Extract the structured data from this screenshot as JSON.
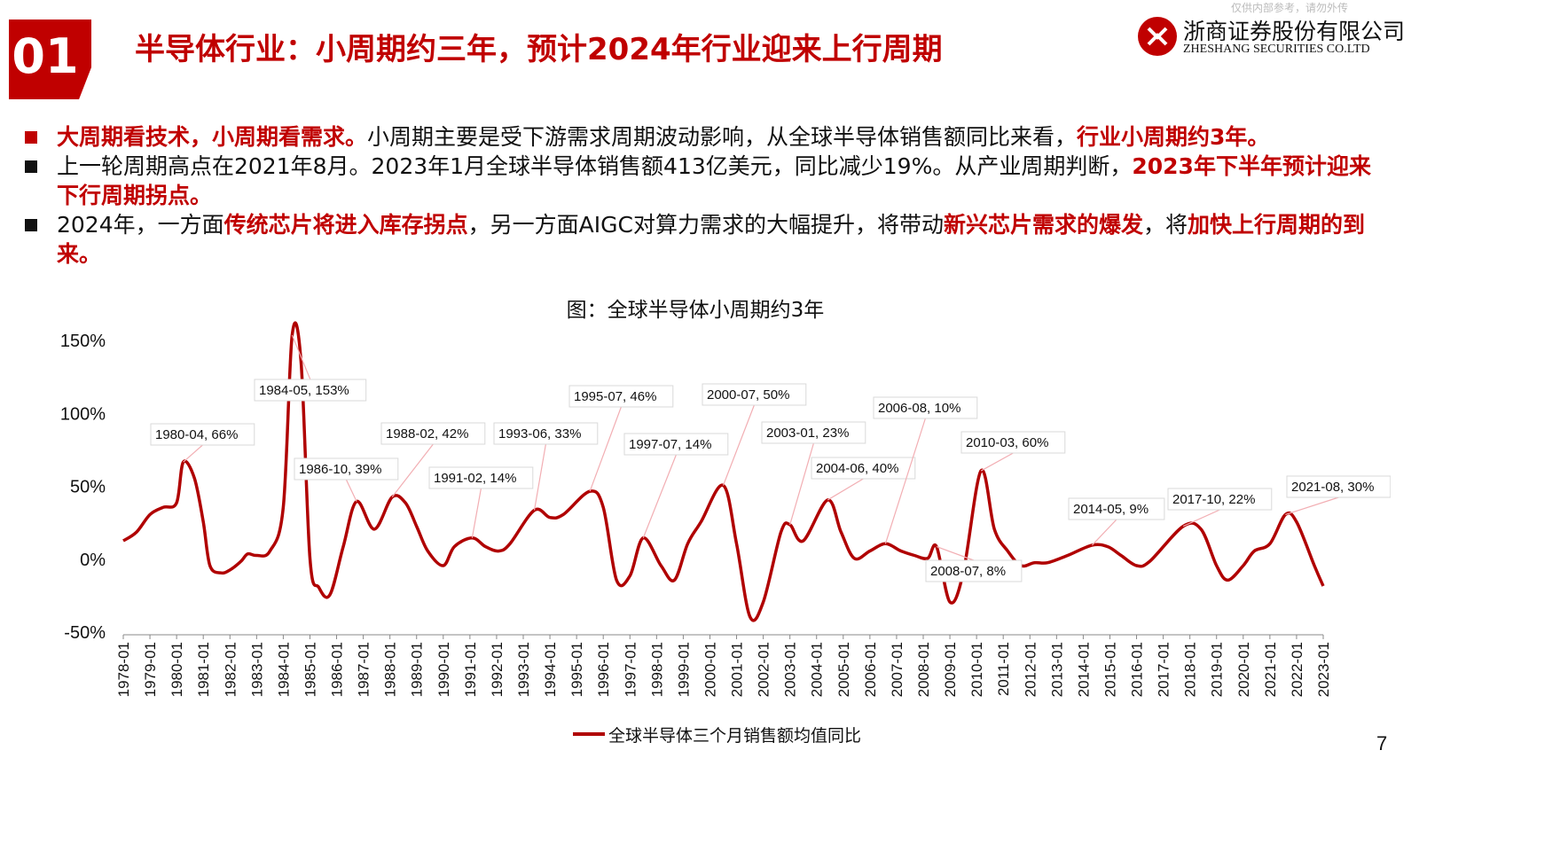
{
  "header": {
    "section_number": "01",
    "title": "半导体行业：小周期约三年，预计2024年行业迎来上行周期",
    "top_note": "仅供内部参考，请勿外传"
  },
  "logo": {
    "name_cn": "浙商证券股份有限公司",
    "name_en": "ZHESHANG SECURITIES CO.LTD",
    "color": "#c00000"
  },
  "bullets": [
    {
      "parts": [
        {
          "text": "大周期看技术，小周期看需求。",
          "hl": true
        },
        {
          "text": "小周期主要是受下游需求周期波动影响，从全球半导体销售额同比来看，",
          "hl": false
        },
        {
          "text": "行业小周期约3年。",
          "hl": true
        }
      ]
    },
    {
      "parts": [
        {
          "text": "上一轮周期高点在2021年8月。2023年1月全球半导体销售额413亿美元，同比减少19%。从产业周期判断，",
          "hl": false
        },
        {
          "text": "2023年下半年预计迎来下行周期拐点。",
          "hl": true
        }
      ]
    },
    {
      "parts": [
        {
          "text": "2024年，一方面",
          "hl": false
        },
        {
          "text": "传统芯片将进入库存拐点",
          "hl": true
        },
        {
          "text": "，另一方面AIGC对算力需求的大幅提升，将带动",
          "hl": false
        },
        {
          "text": "新兴芯片需求的爆发",
          "hl": true
        },
        {
          "text": "，将",
          "hl": false
        },
        {
          "text": "加快上行周期的到来。",
          "hl": true
        }
      ]
    }
  ],
  "page_number": "7",
  "chart_data": {
    "type": "line",
    "title": "图：全球半导体小周期约3年",
    "y_ticks": [
      "150%",
      "100%",
      "50%",
      "0%",
      "-50%"
    ],
    "y_tick_values": [
      150,
      100,
      50,
      0,
      -50
    ],
    "ylim": [
      -50,
      150
    ],
    "x_ticks": [
      "1978-01",
      "1979-01",
      "1980-01",
      "1981-01",
      "1982-01",
      "1983-01",
      "1984-01",
      "1985-01",
      "1986-01",
      "1987-01",
      "1988-01",
      "1989-01",
      "1990-01",
      "1991-01",
      "1992-01",
      "1993-01",
      "1994-01",
      "1995-01",
      "1996-01",
      "1997-01",
      "1998-01",
      "1999-01",
      "2000-01",
      "2001-01",
      "2002-01",
      "2003-01",
      "2004-01",
      "2005-01",
      "2006-01",
      "2007-01",
      "2008-01",
      "2009-01",
      "2010-01",
      "2011-01",
      "2012-01",
      "2013-01",
      "2014-01",
      "2015-01",
      "2016-01",
      "2017-01",
      "2018-01",
      "2019-01",
      "2020-01",
      "2021-01",
      "2022-01",
      "2023-01"
    ],
    "grid": false,
    "legend_position": "bottom",
    "series": [
      {
        "name": "全球半导体三个月销售额均值同比",
        "color": "#b00000",
        "points": [
          [
            "1978-01",
            12
          ],
          [
            "1978-07",
            18
          ],
          [
            "1979-01",
            30
          ],
          [
            "1979-07",
            35
          ],
          [
            "1980-01",
            38
          ],
          [
            "1980-04",
            66
          ],
          [
            "1980-09",
            55
          ],
          [
            "1981-01",
            25
          ],
          [
            "1981-04",
            -5
          ],
          [
            "1981-09",
            -10
          ],
          [
            "1982-01",
            -8
          ],
          [
            "1982-06",
            -2
          ],
          [
            "1982-09",
            3
          ],
          [
            "1983-01",
            2
          ],
          [
            "1983-07",
            5
          ],
          [
            "1984-01",
            35
          ],
          [
            "1984-05",
            153
          ],
          [
            "1984-09",
            135
          ],
          [
            "1985-01",
            0
          ],
          [
            "1985-05",
            -20
          ],
          [
            "1985-10",
            -25
          ],
          [
            "1986-04",
            8
          ],
          [
            "1986-10",
            39
          ],
          [
            "1987-06",
            20
          ],
          [
            "1988-02",
            42
          ],
          [
            "1988-08",
            38
          ],
          [
            "1989-01",
            22
          ],
          [
            "1989-06",
            5
          ],
          [
            "1990-01",
            -5
          ],
          [
            "1990-06",
            8
          ],
          [
            "1991-02",
            14
          ],
          [
            "1991-08",
            8
          ],
          [
            "1992-02",
            5
          ],
          [
            "1992-07",
            10
          ],
          [
            "1993-06",
            33
          ],
          [
            "1994-01",
            28
          ],
          [
            "1994-07",
            30
          ],
          [
            "1995-07",
            46
          ],
          [
            "1996-01",
            35
          ],
          [
            "1996-07",
            -15
          ],
          [
            "1997-01",
            -12
          ],
          [
            "1997-07",
            14
          ],
          [
            "1998-03",
            -5
          ],
          [
            "1998-09",
            -15
          ],
          [
            "1999-03",
            10
          ],
          [
            "1999-09",
            25
          ],
          [
            "2000-07",
            50
          ],
          [
            "2001-01",
            10
          ],
          [
            "2001-07",
            -40
          ],
          [
            "2002-01",
            -30
          ],
          [
            "2002-09",
            18
          ],
          [
            "2003-01",
            23
          ],
          [
            "2003-07",
            12
          ],
          [
            "2004-06",
            40
          ],
          [
            "2004-12",
            18
          ],
          [
            "2005-06",
            0
          ],
          [
            "2006-01",
            5
          ],
          [
            "2006-08",
            10
          ],
          [
            "2007-03",
            5
          ],
          [
            "2007-09",
            2
          ],
          [
            "2008-03",
            0
          ],
          [
            "2008-07",
            8
          ],
          [
            "2009-01",
            -30
          ],
          [
            "2009-07",
            -10
          ],
          [
            "2010-03",
            60
          ],
          [
            "2010-09",
            20
          ],
          [
            "2011-03",
            5
          ],
          [
            "2011-09",
            -5
          ],
          [
            "2012-03",
            -3
          ],
          [
            "2012-09",
            -3
          ],
          [
            "2013-06",
            2
          ],
          [
            "2014-05",
            9
          ],
          [
            "2014-12",
            8
          ],
          [
            "2015-06",
            2
          ],
          [
            "2016-01",
            -5
          ],
          [
            "2016-07",
            -2
          ],
          [
            "2017-10",
            22
          ],
          [
            "2018-06",
            20
          ],
          [
            "2019-01",
            -5
          ],
          [
            "2019-06",
            -15
          ],
          [
            "2020-01",
            -5
          ],
          [
            "2020-06",
            5
          ],
          [
            "2021-01",
            10
          ],
          [
            "2021-08",
            30
          ],
          [
            "2022-01",
            25
          ],
          [
            "2022-09",
            -5
          ],
          [
            "2023-01",
            -19
          ]
        ]
      }
    ],
    "annotations": [
      {
        "date": "1980-04",
        "label": "1980-04, 66%"
      },
      {
        "date": "1984-05",
        "label": "1984-05, 153%"
      },
      {
        "date": "1986-10",
        "label": "1986-10, 39%"
      },
      {
        "date": "1988-02",
        "label": "1988-02, 42%"
      },
      {
        "date": "1991-02",
        "label": "1991-02, 14%"
      },
      {
        "date": "1993-06",
        "label": "1993-06, 33%"
      },
      {
        "date": "1995-07",
        "label": "1995-07, 46%"
      },
      {
        "date": "1997-07",
        "label": "1997-07, 14%"
      },
      {
        "date": "2000-07",
        "label": "2000-07, 50%"
      },
      {
        "date": "2003-01",
        "label": "2003-01, 23%"
      },
      {
        "date": "2004-06",
        "label": "2004-06, 40%"
      },
      {
        "date": "2006-08",
        "label": "2006-08, 10%"
      },
      {
        "date": "2008-07",
        "label": "2008-07, 8%"
      },
      {
        "date": "2010-03",
        "label": "2010-03, 60%"
      },
      {
        "date": "2014-05",
        "label": "2014-05, 9%"
      },
      {
        "date": "2017-10",
        "label": "2017-10, 22%"
      },
      {
        "date": "2021-08",
        "label": "2021-08, 30%"
      }
    ]
  }
}
